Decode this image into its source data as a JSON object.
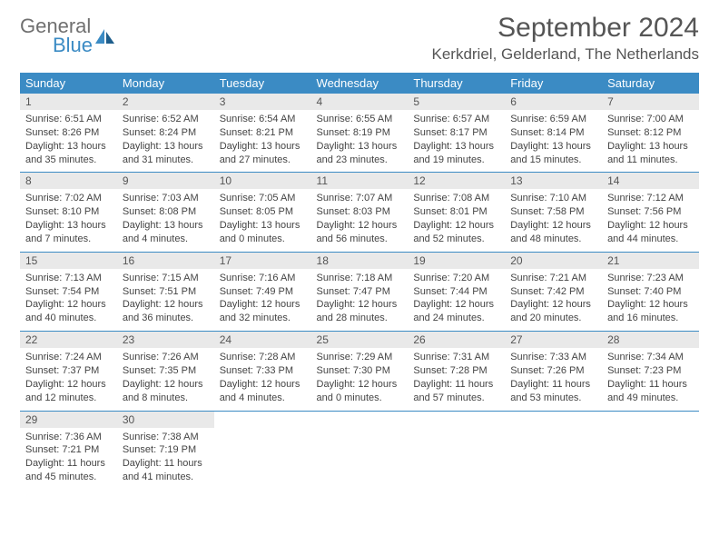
{
  "brand": {
    "name_top": "General",
    "name_bottom": "Blue"
  },
  "title": "September 2024",
  "location": "Kerkdriel, Gelderland, The Netherlands",
  "colors": {
    "header_bg": "#3b8bc4",
    "header_text": "#ffffff",
    "daynum_bg": "#e9e9e9",
    "text": "#444444",
    "rule": "#3b8bc4"
  },
  "day_names": [
    "Sunday",
    "Monday",
    "Tuesday",
    "Wednesday",
    "Thursday",
    "Friday",
    "Saturday"
  ],
  "weeks": [
    [
      {
        "n": "1",
        "sunrise": "6:51 AM",
        "sunset": "8:26 PM",
        "daylight": "13 hours and 35 minutes."
      },
      {
        "n": "2",
        "sunrise": "6:52 AM",
        "sunset": "8:24 PM",
        "daylight": "13 hours and 31 minutes."
      },
      {
        "n": "3",
        "sunrise": "6:54 AM",
        "sunset": "8:21 PM",
        "daylight": "13 hours and 27 minutes."
      },
      {
        "n": "4",
        "sunrise": "6:55 AM",
        "sunset": "8:19 PM",
        "daylight": "13 hours and 23 minutes."
      },
      {
        "n": "5",
        "sunrise": "6:57 AM",
        "sunset": "8:17 PM",
        "daylight": "13 hours and 19 minutes."
      },
      {
        "n": "6",
        "sunrise": "6:59 AM",
        "sunset": "8:14 PM",
        "daylight": "13 hours and 15 minutes."
      },
      {
        "n": "7",
        "sunrise": "7:00 AM",
        "sunset": "8:12 PM",
        "daylight": "13 hours and 11 minutes."
      }
    ],
    [
      {
        "n": "8",
        "sunrise": "7:02 AM",
        "sunset": "8:10 PM",
        "daylight": "13 hours and 7 minutes."
      },
      {
        "n": "9",
        "sunrise": "7:03 AM",
        "sunset": "8:08 PM",
        "daylight": "13 hours and 4 minutes."
      },
      {
        "n": "10",
        "sunrise": "7:05 AM",
        "sunset": "8:05 PM",
        "daylight": "13 hours and 0 minutes."
      },
      {
        "n": "11",
        "sunrise": "7:07 AM",
        "sunset": "8:03 PM",
        "daylight": "12 hours and 56 minutes."
      },
      {
        "n": "12",
        "sunrise": "7:08 AM",
        "sunset": "8:01 PM",
        "daylight": "12 hours and 52 minutes."
      },
      {
        "n": "13",
        "sunrise": "7:10 AM",
        "sunset": "7:58 PM",
        "daylight": "12 hours and 48 minutes."
      },
      {
        "n": "14",
        "sunrise": "7:12 AM",
        "sunset": "7:56 PM",
        "daylight": "12 hours and 44 minutes."
      }
    ],
    [
      {
        "n": "15",
        "sunrise": "7:13 AM",
        "sunset": "7:54 PM",
        "daylight": "12 hours and 40 minutes."
      },
      {
        "n": "16",
        "sunrise": "7:15 AM",
        "sunset": "7:51 PM",
        "daylight": "12 hours and 36 minutes."
      },
      {
        "n": "17",
        "sunrise": "7:16 AM",
        "sunset": "7:49 PM",
        "daylight": "12 hours and 32 minutes."
      },
      {
        "n": "18",
        "sunrise": "7:18 AM",
        "sunset": "7:47 PM",
        "daylight": "12 hours and 28 minutes."
      },
      {
        "n": "19",
        "sunrise": "7:20 AM",
        "sunset": "7:44 PM",
        "daylight": "12 hours and 24 minutes."
      },
      {
        "n": "20",
        "sunrise": "7:21 AM",
        "sunset": "7:42 PM",
        "daylight": "12 hours and 20 minutes."
      },
      {
        "n": "21",
        "sunrise": "7:23 AM",
        "sunset": "7:40 PM",
        "daylight": "12 hours and 16 minutes."
      }
    ],
    [
      {
        "n": "22",
        "sunrise": "7:24 AM",
        "sunset": "7:37 PM",
        "daylight": "12 hours and 12 minutes."
      },
      {
        "n": "23",
        "sunrise": "7:26 AM",
        "sunset": "7:35 PM",
        "daylight": "12 hours and 8 minutes."
      },
      {
        "n": "24",
        "sunrise": "7:28 AM",
        "sunset": "7:33 PM",
        "daylight": "12 hours and 4 minutes."
      },
      {
        "n": "25",
        "sunrise": "7:29 AM",
        "sunset": "7:30 PM",
        "daylight": "12 hours and 0 minutes."
      },
      {
        "n": "26",
        "sunrise": "7:31 AM",
        "sunset": "7:28 PM",
        "daylight": "11 hours and 57 minutes."
      },
      {
        "n": "27",
        "sunrise": "7:33 AM",
        "sunset": "7:26 PM",
        "daylight": "11 hours and 53 minutes."
      },
      {
        "n": "28",
        "sunrise": "7:34 AM",
        "sunset": "7:23 PM",
        "daylight": "11 hours and 49 minutes."
      }
    ],
    [
      {
        "n": "29",
        "sunrise": "7:36 AM",
        "sunset": "7:21 PM",
        "daylight": "11 hours and 45 minutes."
      },
      {
        "n": "30",
        "sunrise": "7:38 AM",
        "sunset": "7:19 PM",
        "daylight": "11 hours and 41 minutes."
      },
      null,
      null,
      null,
      null,
      null
    ]
  ],
  "labels": {
    "sunrise": "Sunrise:",
    "sunset": "Sunset:",
    "daylight": "Daylight:"
  }
}
